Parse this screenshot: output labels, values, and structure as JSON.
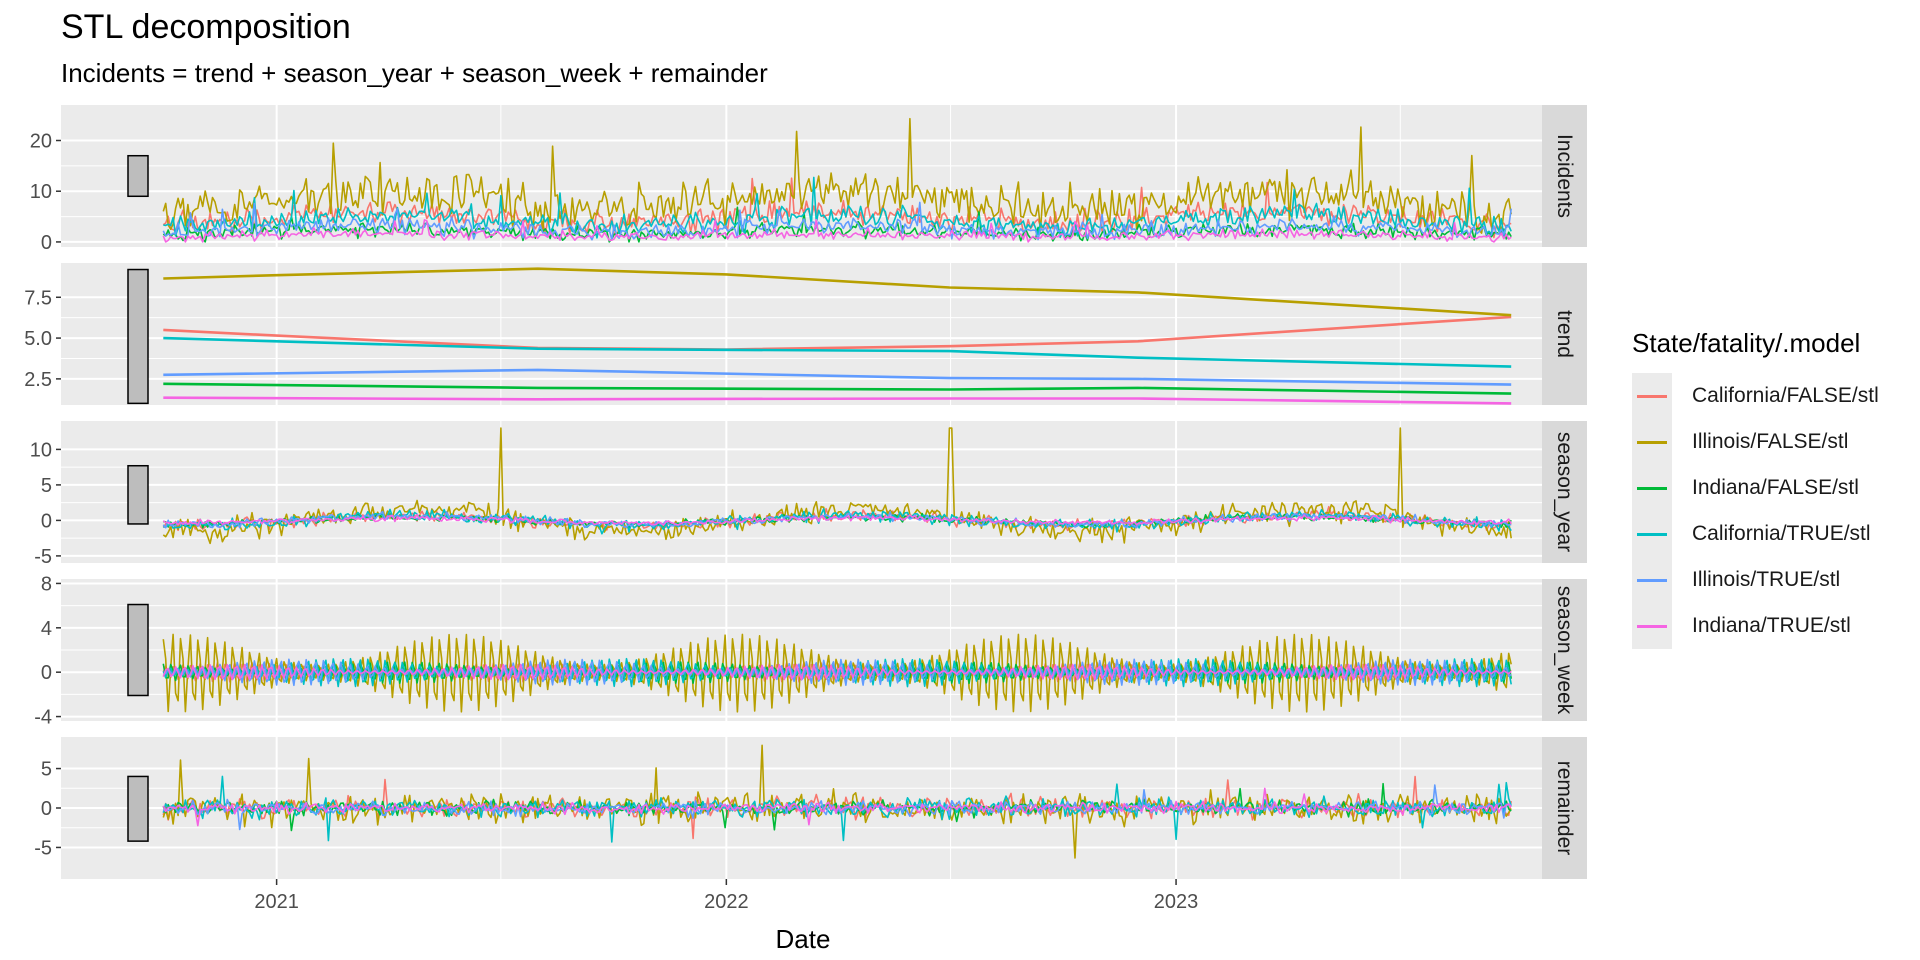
{
  "chart_data": {
    "type": "line",
    "title": "STL decomposition",
    "subtitle": "Incidents = trend + season_year + season_week + remainder",
    "xlabel": "Date",
    "x_range": [
      "2020-07-10",
      "2023-10-25"
    ],
    "x_ticks": [
      "2021",
      "2022",
      "2023"
    ],
    "x_tick_dates": [
      "2021-01-01",
      "2022-01-01",
      "2023-01-01"
    ],
    "data_start": "2020-10-01",
    "data_end": "2023-09-30",
    "grid": true,
    "legend_position": "right",
    "legend_title": "State/fatality/.model",
    "series": [
      {
        "name": "California/FALSE/stl",
        "color": "#F8766D"
      },
      {
        "name": "Illinois/FALSE/stl",
        "color": "#B79F00"
      },
      {
        "name": "Indiana/FALSE/stl",
        "color": "#00BA38"
      },
      {
        "name": "California/TRUE/stl",
        "color": "#00BFC4"
      },
      {
        "name": "Illinois/TRUE/stl",
        "color": "#619CFF"
      },
      {
        "name": "Indiana/TRUE/stl",
        "color": "#F564E3"
      }
    ],
    "panels": [
      {
        "name": "Incidents",
        "ylim": [
          -1,
          27
        ],
        "y_ticks": [
          0,
          10,
          20
        ],
        "y_tick_labels": [
          "0",
          "10",
          "20"
        ],
        "scale_bar": [
          9,
          17
        ],
        "series_levels": [
          {
            "mean": 4.8,
            "amp": 3.0,
            "min": 0
          },
          {
            "mean": 8.2,
            "amp": 5.5,
            "min": 0
          },
          {
            "mean": 2.0,
            "amp": 1.8,
            "min": 0
          },
          {
            "mean": 4.2,
            "amp": 2.6,
            "min": 0
          },
          {
            "mean": 2.6,
            "amp": 2.0,
            "min": 0
          },
          {
            "mean": 1.3,
            "amp": 1.2,
            "min": 0
          }
        ]
      },
      {
        "name": "trend",
        "ylim": [
          0.9,
          9.6
        ],
        "y_ticks": [
          2.5,
          5.0,
          7.5
        ],
        "y_tick_labels": [
          "2.5",
          "5.0",
          "7.5"
        ],
        "scale_bar": [
          1.0,
          9.2
        ],
        "trend_points": [
          [
            [
              "2020-10-01",
              5.5
            ],
            [
              "2021-01-01",
              5.15
            ],
            [
              "2021-08-01",
              4.4
            ],
            [
              "2022-01-01",
              4.3
            ],
            [
              "2022-07-01",
              4.5
            ],
            [
              "2022-12-01",
              4.8
            ],
            [
              "2023-09-30",
              6.3
            ]
          ],
          [
            [
              "2020-10-01",
              8.65
            ],
            [
              "2021-01-01",
              8.85
            ],
            [
              "2021-08-01",
              9.25
            ],
            [
              "2022-01-01",
              8.9
            ],
            [
              "2022-07-01",
              8.1
            ],
            [
              "2022-12-01",
              7.8
            ],
            [
              "2023-09-30",
              6.4
            ]
          ],
          [
            [
              "2020-10-01",
              2.2
            ],
            [
              "2021-08-01",
              1.95
            ],
            [
              "2022-07-01",
              1.85
            ],
            [
              "2022-12-01",
              1.95
            ],
            [
              "2023-09-30",
              1.6
            ]
          ],
          [
            [
              "2020-10-01",
              5.0
            ],
            [
              "2021-08-01",
              4.35
            ],
            [
              "2022-07-01",
              4.2
            ],
            [
              "2022-12-01",
              3.8
            ],
            [
              "2023-09-30",
              3.25
            ]
          ],
          [
            [
              "2020-10-01",
              2.75
            ],
            [
              "2021-08-01",
              3.05
            ],
            [
              "2022-07-01",
              2.55
            ],
            [
              "2022-12-01",
              2.5
            ],
            [
              "2023-09-30",
              2.15
            ]
          ],
          [
            [
              "2020-10-01",
              1.35
            ],
            [
              "2021-08-01",
              1.25
            ],
            [
              "2022-07-01",
              1.3
            ],
            [
              "2022-12-01",
              1.3
            ],
            [
              "2023-09-30",
              1.0
            ]
          ]
        ]
      },
      {
        "name": "season_year",
        "ylim": [
          -6,
          14
        ],
        "y_ticks": [
          -5,
          0,
          5,
          10
        ],
        "y_tick_labels": [
          "-5",
          "0",
          "5",
          "10"
        ],
        "scale_bar": [
          -0.5,
          7.7
        ],
        "series_levels": [
          {
            "mean": 0,
            "amp": 1.2
          },
          {
            "mean": 0,
            "amp": 2.6
          },
          {
            "mean": 0,
            "amp": 0.8
          },
          {
            "mean": 0,
            "amp": 1.3
          },
          {
            "mean": 0,
            "amp": 0.9
          },
          {
            "mean": 0,
            "amp": 0.6
          }
        ]
      },
      {
        "name": "season_week",
        "ylim": [
          -4.4,
          8.4
        ],
        "y_ticks": [
          -4,
          0,
          4,
          8
        ],
        "y_tick_labels": [
          "-4",
          "0",
          "4",
          "8"
        ],
        "scale_bar": [
          -2.1,
          6.1
        ],
        "series_levels": [
          {
            "mean": 0,
            "amp": 0.9
          },
          {
            "mean": 0,
            "amp": 3.6
          },
          {
            "mean": 0,
            "amp": 1.0
          },
          {
            "mean": 0,
            "amp": 1.3
          },
          {
            "mean": 0,
            "amp": 1.2
          },
          {
            "mean": 0,
            "amp": 0.7
          }
        ]
      },
      {
        "name": "remainder",
        "ylim": [
          -9,
          9
        ],
        "y_ticks": [
          -5,
          0,
          5
        ],
        "y_tick_labels": [
          "-5",
          "0",
          "5"
        ],
        "scale_bar": [
          -4.2,
          4.0
        ],
        "series_levels": [
          {
            "mean": 0,
            "amp": 1.8
          },
          {
            "mean": 0,
            "amp": 2.6
          },
          {
            "mean": 0,
            "amp": 1.2
          },
          {
            "mean": 0,
            "amp": 1.6
          },
          {
            "mean": 0,
            "amp": 1.2
          },
          {
            "mean": 0,
            "amp": 0.9
          }
        ]
      }
    ]
  }
}
